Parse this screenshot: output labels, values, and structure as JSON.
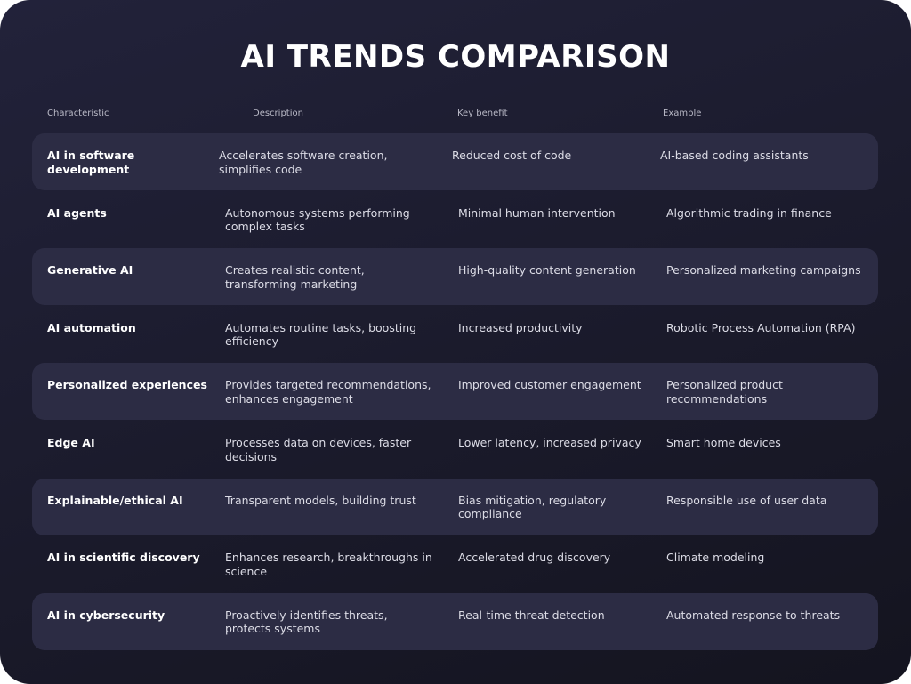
{
  "title": "AI TRENDS COMPARISON",
  "table": {
    "headers": [
      "Characteristic",
      "Description",
      "Key benefit",
      "Example"
    ],
    "rows": [
      [
        "AI in software development",
        "Accelerates software creation, simplifies code",
        "Reduced cost of code",
        "AI-based coding assistants"
      ],
      [
        "AI agents",
        "Autonomous systems performing complex tasks",
        "Minimal human intervention",
        "Algorithmic trading in finance"
      ],
      [
        "Generative AI",
        "Creates realistic content, transforming marketing",
        "High-quality content generation",
        "Personalized marketing campaigns"
      ],
      [
        "AI automation",
        "Automates routine tasks, boosting efficiency",
        "Increased productivity",
        "Robotic Process Automation (RPA)"
      ],
      [
        "Personalized experiences",
        "Provides targeted recommendations, enhances engagement",
        "Improved customer engagement",
        "Personalized product recommendations"
      ],
      [
        "Edge AI",
        "Processes data on devices, faster decisions",
        "Lower latency, increased privacy",
        "Smart home devices"
      ],
      [
        "Explainable/ethical AI",
        "Transparent models, building trust",
        "Bias mitigation, regulatory compliance",
        "Responsible use of user data"
      ],
      [
        "AI in scientific discovery",
        "Enhances research, breakthroughs in science",
        "Accelerated drug discovery",
        "Climate modeling"
      ],
      [
        "AI in cybersecurity",
        "Proactively identifies threats, protects systems",
        "Real-time threat detection",
        "Automated response to threats"
      ]
    ]
  }
}
